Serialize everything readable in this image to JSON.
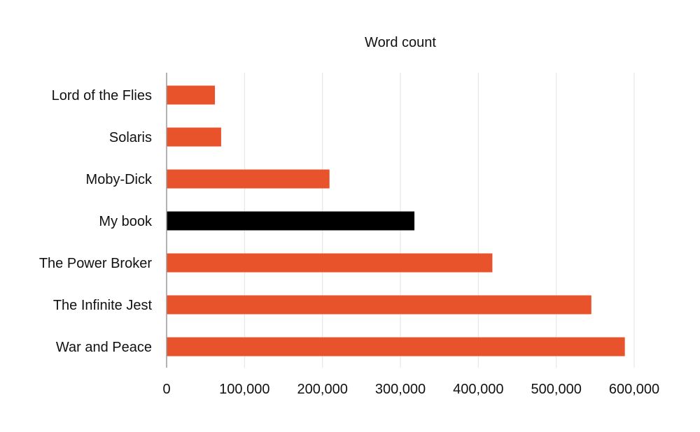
{
  "chart_data": {
    "type": "bar",
    "orientation": "horizontal",
    "title": "Word count",
    "xlabel": "",
    "ylabel": "",
    "categories": [
      "Lord of the Flies",
      "Solaris",
      "Moby-Dick",
      "My book",
      "The Power Broker",
      "The Infinite Jest",
      "War and Peace"
    ],
    "values": [
      62000,
      70000,
      209000,
      318000,
      418000,
      545000,
      588000
    ],
    "highlight_category": "My book",
    "colors": {
      "default_bar": "#e8532b",
      "highlight_bar": "#000000",
      "grid": "#e3e3e3",
      "axis": "#9a9a9a"
    },
    "xlim": [
      0,
      600000
    ],
    "x_ticks": [
      0,
      100000,
      200000,
      300000,
      400000,
      500000,
      600000
    ],
    "x_tick_labels": [
      "0",
      "100,000",
      "200,000",
      "300,000",
      "400,000",
      "500,000",
      "600,000"
    ],
    "grid": true,
    "legend": "none"
  }
}
